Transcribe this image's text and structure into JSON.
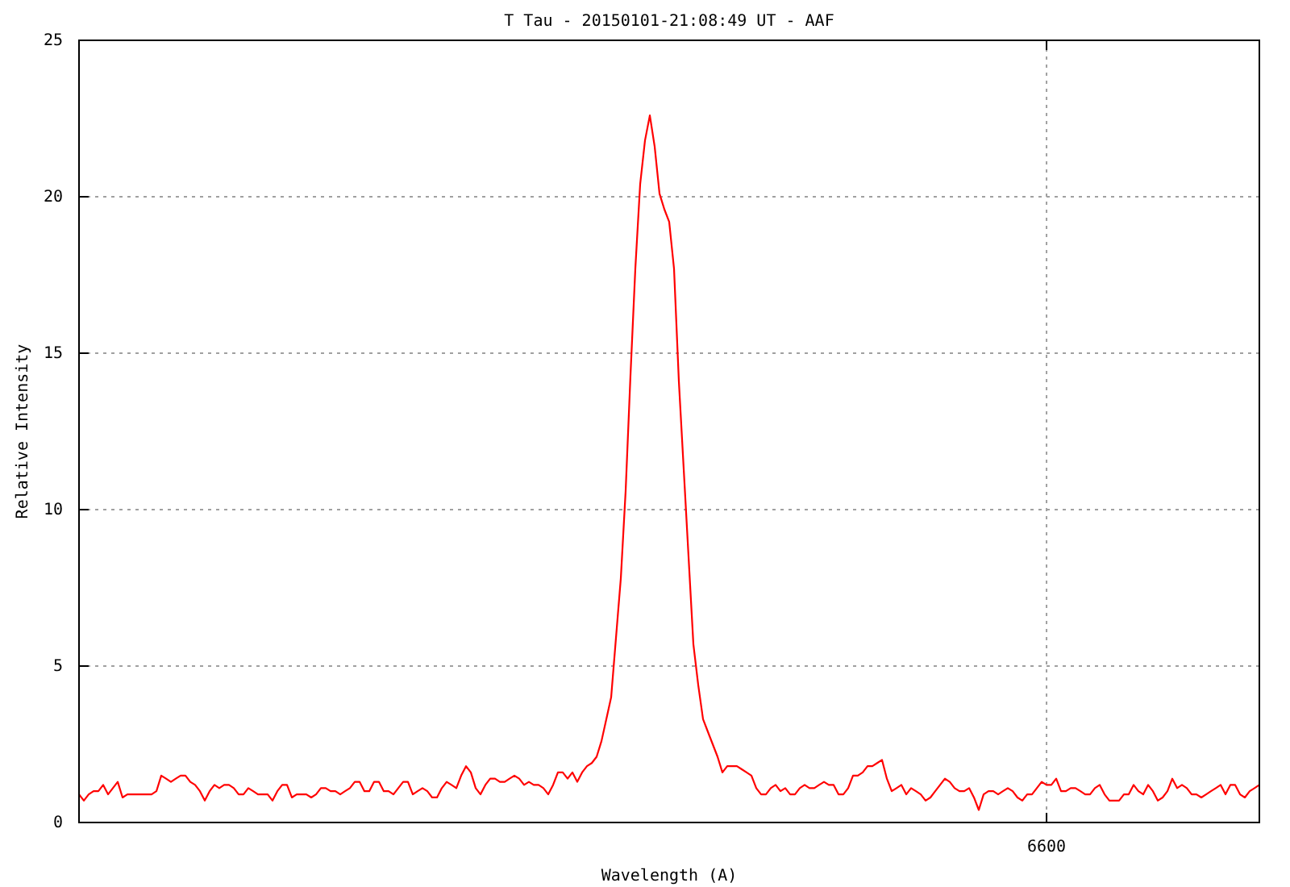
{
  "chart_data": {
    "type": "line",
    "title": "T Tau - 20150101-21:08:49 UT - AAF",
    "xlabel": "Wavelength (A)",
    "ylabel": "Relative Intensity",
    "annotations": [
      "6600"
    ],
    "ylim": [
      0,
      25
    ],
    "yticks": [
      0,
      5,
      10,
      15,
      20,
      25
    ],
    "grid": "y",
    "tick_labels": "y",
    "categories": [
      null,
      null,
      null,
      null,
      null,
      null,
      null,
      null,
      null,
      null,
      null,
      null,
      null,
      null,
      null,
      null,
      null,
      null,
      null,
      null,
      null,
      null,
      null,
      null,
      null,
      null,
      null,
      null,
      null,
      null,
      null,
      null,
      null,
      null,
      null,
      null,
      null,
      null,
      null,
      null,
      null,
      null,
      null,
      null,
      null,
      null,
      null,
      null,
      null,
      null,
      null,
      null,
      null,
      null,
      null,
      null,
      null,
      null,
      null,
      null,
      null,
      null,
      null,
      null,
      null,
      null,
      null,
      null,
      null,
      null,
      null,
      null,
      null,
      null,
      null,
      null,
      null,
      null,
      null,
      null,
      null,
      null,
      null,
      null,
      null,
      null,
      null,
      null,
      null,
      null,
      null,
      null,
      null,
      null,
      null,
      null,
      null,
      null,
      null,
      null,
      null,
      null,
      null,
      null,
      null,
      null,
      null,
      null,
      null,
      null,
      null,
      null,
      null,
      null,
      null,
      null,
      null,
      null,
      null,
      null,
      null,
      null,
      null,
      null,
      null,
      null,
      null,
      null,
      null,
      null,
      null,
      null,
      null,
      null,
      null,
      null,
      null,
      null,
      null,
      null,
      null,
      null,
      null,
      null,
      null,
      null,
      null,
      null,
      null,
      null,
      null,
      null,
      null,
      null,
      null,
      null,
      null,
      null,
      null,
      null,
      null,
      null,
      null,
      null,
      null,
      null,
      null,
      null,
      null,
      null,
      null,
      null,
      null,
      null,
      null,
      null,
      null,
      null,
      null,
      null,
      null,
      null,
      null,
      null,
      null,
      null,
      null,
      null,
      null,
      null,
      null,
      null,
      null,
      null,
      null,
      null,
      null,
      null,
      null,
      null,
      null,
      null,
      null,
      null,
      null,
      null,
      null,
      null,
      null,
      null,
      null,
      null,
      null,
      null,
      null,
      null,
      null,
      null,
      null,
      null,
      null,
      null,
      null,
      null,
      null,
      null,
      null,
      null,
      null,
      null,
      null,
      null,
      null,
      null,
      null,
      null,
      null,
      null,
      null,
      null,
      null,
      null,
      null,
      null,
      null
    ],
    "series": [
      {
        "color": "#ff0000",
        "values": [
          0.9,
          0.7,
          0.9,
          1.0,
          1.0,
          1.2,
          0.9,
          1.1,
          1.3,
          0.8,
          0.9,
          0.9,
          0.9,
          0.9,
          0.9,
          0.9,
          1.0,
          1.5,
          1.4,
          1.3,
          1.4,
          1.5,
          1.5,
          1.3,
          1.2,
          1.0,
          0.7,
          1.0,
          1.2,
          1.1,
          1.2,
          1.2,
          1.1,
          0.9,
          0.9,
          1.1,
          1.0,
          0.9,
          0.9,
          0.9,
          0.7,
          1.0,
          1.2,
          1.2,
          0.8,
          0.9,
          0.9,
          0.9,
          0.8,
          0.9,
          1.1,
          1.1,
          1.0,
          1.0,
          0.9,
          1.0,
          1.1,
          1.3,
          1.3,
          1.0,
          1.0,
          1.3,
          1.3,
          1.0,
          1.0,
          0.9,
          1.1,
          1.3,
          1.3,
          0.9,
          1.0,
          1.1,
          1.0,
          0.8,
          0.8,
          1.1,
          1.3,
          1.2,
          1.1,
          1.5,
          1.8,
          1.6,
          1.1,
          0.9,
          1.2,
          1.4,
          1.4,
          1.3,
          1.3,
          1.4,
          1.5,
          1.4,
          1.2,
          1.3,
          1.2,
          1.2,
          1.1,
          0.9,
          1.2,
          1.6,
          1.6,
          1.4,
          1.6,
          1.3,
          1.6,
          1.8,
          1.9,
          2.1,
          2.6,
          3.3,
          4.0,
          5.9,
          7.8,
          10.6,
          14.3,
          17.7,
          20.4,
          21.8,
          22.6,
          21.6,
          20.1,
          19.6,
          19.2,
          17.7,
          14.1,
          11.3,
          8.5,
          5.7,
          4.4,
          3.3,
          2.9,
          2.5,
          2.1,
          1.6,
          1.8,
          1.8,
          1.8,
          1.7,
          1.6,
          1.5,
          1.1,
          0.9,
          0.9,
          1.1,
          1.2,
          1.0,
          1.1,
          0.9,
          0.9,
          1.1,
          1.2,
          1.1,
          1.1,
          1.2,
          1.3,
          1.2,
          1.2,
          0.9,
          0.9,
          1.1,
          1.5,
          1.5,
          1.6,
          1.8,
          1.8,
          1.9,
          2.0,
          1.4,
          1.0,
          1.1,
          1.2,
          0.9,
          1.1,
          1.0,
          0.9,
          0.7,
          0.8,
          1.0,
          1.2,
          1.4,
          1.3,
          1.1,
          1.0,
          1.0,
          1.1,
          0.8,
          0.4,
          0.9,
          1.0,
          1.0,
          0.9,
          1.0,
          1.1,
          1.0,
          0.8,
          0.7,
          0.9,
          0.9,
          1.1,
          1.3,
          1.2,
          1.2,
          1.4,
          1.0,
          1.0,
          1.1,
          1.1,
          1.0,
          0.9,
          0.9,
          1.1,
          1.2,
          0.9,
          0.7,
          0.7,
          0.7,
          0.9,
          0.9,
          1.2,
          1.0,
          0.9,
          1.2,
          1.0,
          0.7,
          0.8,
          1.0,
          1.4,
          1.1,
          1.2,
          1.1,
          0.9,
          0.9,
          0.8,
          0.9,
          1.0,
          1.1,
          1.2,
          0.9,
          1.2,
          1.2,
          0.9,
          0.8,
          1.0,
          1.1,
          1.2
        ]
      }
    ]
  }
}
